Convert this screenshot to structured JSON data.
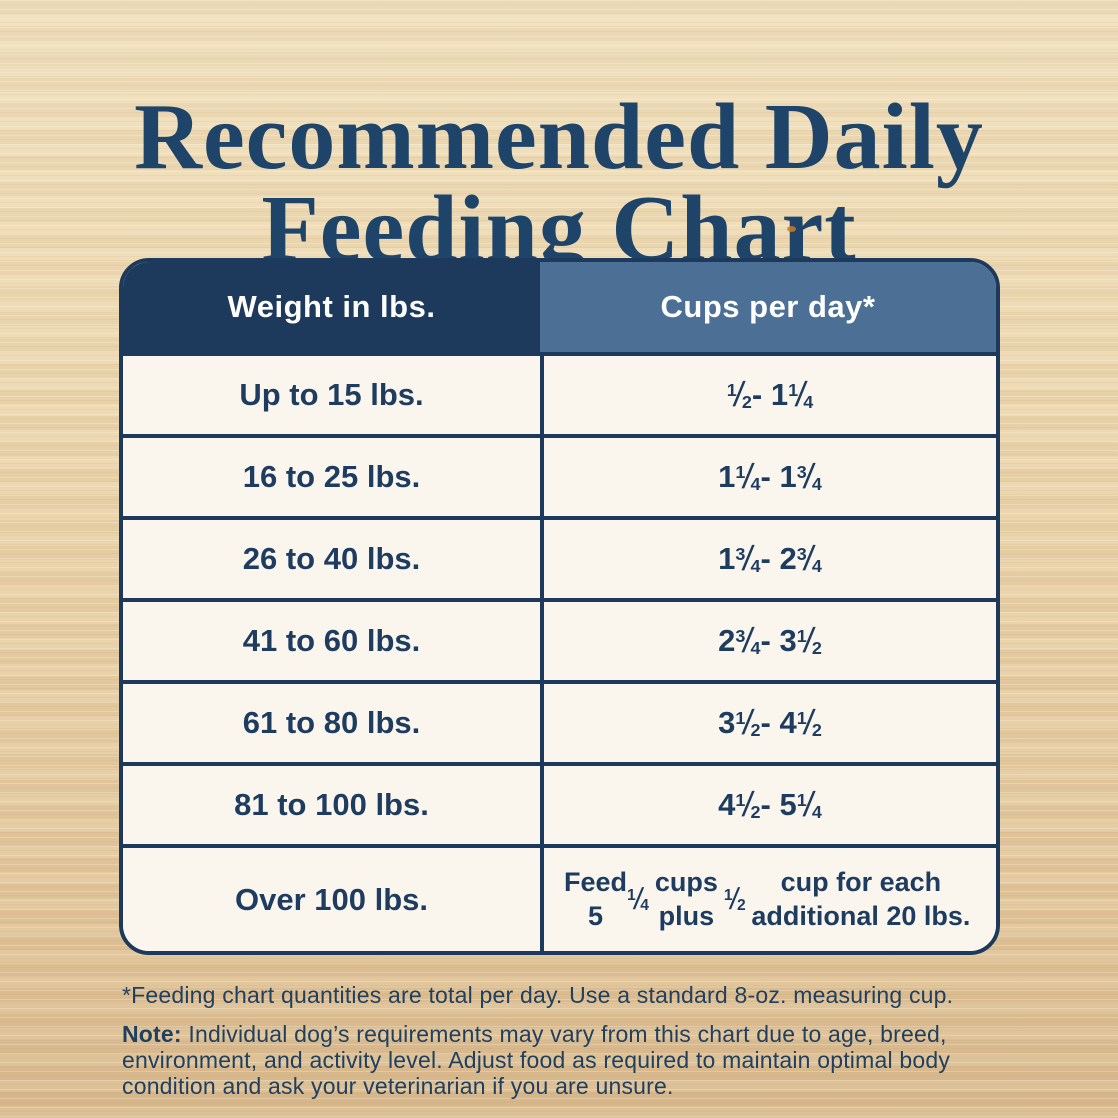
{
  "title": {
    "line1": "Recommended Daily",
    "line2": "Feeding Chart"
  },
  "table": {
    "headers": [
      {
        "label": "Weight in lbs."
      },
      {
        "label": "Cups per day*"
      }
    ],
    "rows": [
      {
        "weight": "Up to 15 lbs.",
        "cups": "½ - 1 ¼"
      },
      {
        "weight": "16 to 25 lbs.",
        "cups": "1 ¼ - 1 ¾"
      },
      {
        "weight": "26 to 40 lbs.",
        "cups": "1 ¾ - 2 ¾"
      },
      {
        "weight": "41 to 60 lbs.",
        "cups": "2 ¾ - 3 ½"
      },
      {
        "weight": "61 to 80 lbs.",
        "cups": "3 ½ - 4 ½"
      },
      {
        "weight": "81 to 100 lbs.",
        "cups": "4 ½ - 5 ¼"
      },
      {
        "weight": "Over 100 lbs.",
        "cups": "Feed 5 ¼ cups plus ½ cup for each additional 20 lbs."
      }
    ]
  },
  "footnotes": {
    "asterisk": "*Feeding chart quantities are total per day. Use a standard 8-oz. measuring cup.",
    "note_label": "Note:",
    "note_body": " Individual dog’s requirements may vary from this chart due to age, breed, environment, and activity level. Adjust food as required to maintain optimal body condition and ask your veterinarian if you are unsure."
  },
  "colors": {
    "title_navy": "#1e4469",
    "header_dark_navy": "#1d3a5c",
    "header_steel_blue": "#4c7095",
    "row_cream": "#faf6ee",
    "cell_text_navy": "#1e3c5f",
    "wood_light": "#efdfbc",
    "wood_dark": "#d9ba8e",
    "knot_orange": "#d07b27"
  },
  "chart_data": {
    "type": "table",
    "title": "Recommended Daily Feeding Chart",
    "columns": [
      "Weight in lbs.",
      "Cups per day*"
    ],
    "rows": [
      [
        "Up to 15 lbs.",
        "½ - 1 ¼"
      ],
      [
        "16 to 25 lbs.",
        "1 ¼ - 1 ¾"
      ],
      [
        "26 to 40 lbs.",
        "1 ¾ - 2 ¾"
      ],
      [
        "41 to 60 lbs.",
        "2 ¾ - 3 ½"
      ],
      [
        "61 to 80 lbs.",
        "3 ½ - 4 ½"
      ],
      [
        "81 to 100 lbs.",
        "4 ½ - 5 ¼"
      ],
      [
        "Over 100 lbs.",
        "Feed 5 ¼ cups plus ½ cup for each additional 20 lbs."
      ]
    ],
    "annotations": [
      "*Feeding chart quantities are total per day. Use a standard 8-oz. measuring cup.",
      "Note: Individual dog’s requirements may vary from this chart due to age, breed, environment, and activity level. Adjust food as required to maintain optimal body condition and ask your veterinarian if you are unsure."
    ]
  }
}
